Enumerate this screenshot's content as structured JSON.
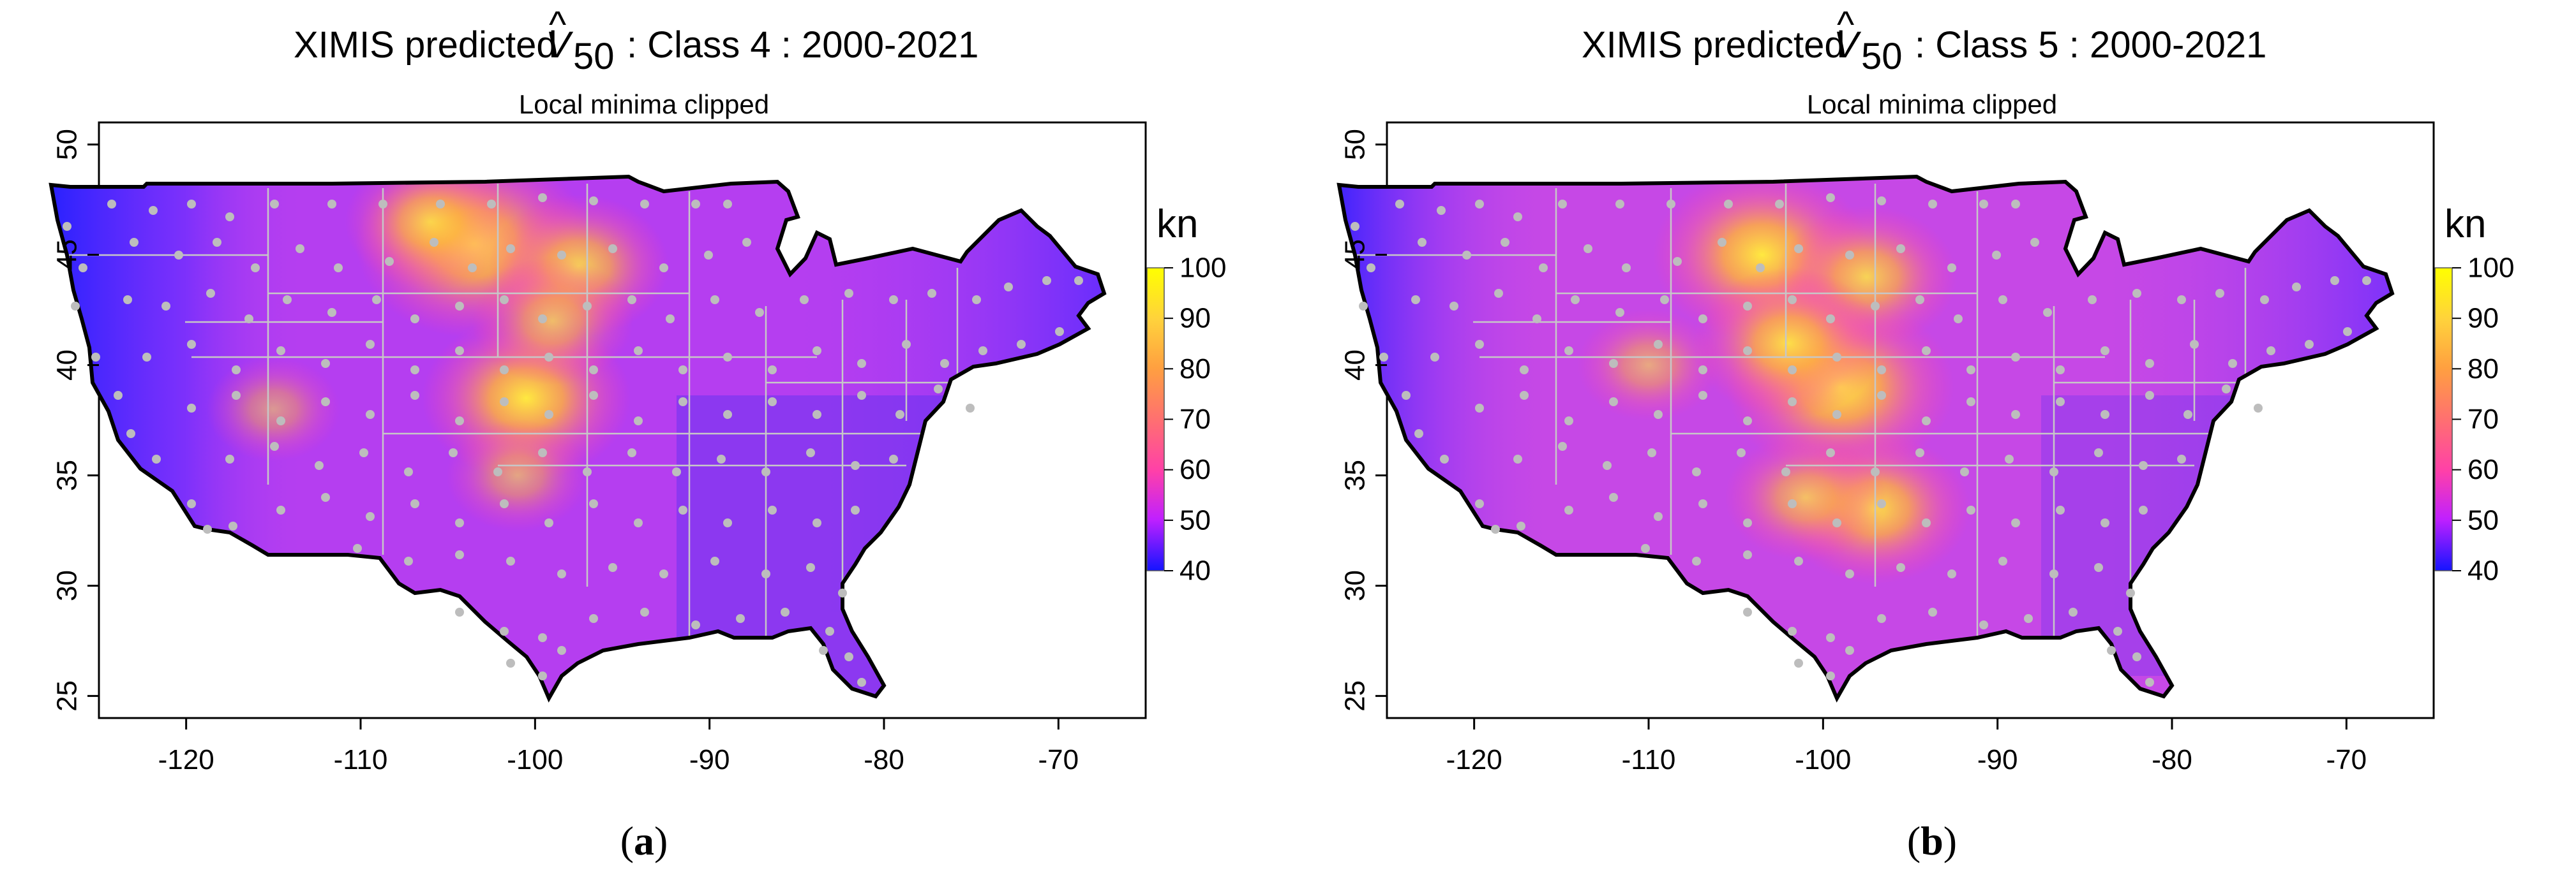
{
  "panels": [
    {
      "id": "a",
      "title_prefix": "XIMIS predicted",
      "title_symbol": "V",
      "title_hat": "^",
      "title_subscript": "50",
      "title_suffix": ": Class 4 : 2000-2021",
      "subtitle": "Local minima clipped",
      "caption_open": "(",
      "caption_letter": "a",
      "caption_close": ")",
      "hotspots": [
        {
          "lon": -103.5,
          "lat": 45.5,
          "value": 96
        },
        {
          "lon": -100.5,
          "lat": 38.5,
          "value": 90
        },
        {
          "lon": -97.5,
          "lat": 44.5,
          "value": 84
        },
        {
          "lon": -106,
          "lat": 46.5,
          "value": 82
        },
        {
          "lon": -99,
          "lat": 42,
          "value": 80
        },
        {
          "lon": -101,
          "lat": 35,
          "value": 76
        },
        {
          "lon": -115,
          "lat": 38,
          "value": 74
        }
      ]
    },
    {
      "id": "b",
      "title_prefix": "XIMIS predicted",
      "title_symbol": "V",
      "title_hat": "^",
      "title_subscript": "50",
      "title_suffix": ": Class 5 : 2000-2021",
      "subtitle": "Local minima clipped",
      "caption_open": "(",
      "caption_letter": "b",
      "caption_close": ")",
      "hotspots": [
        {
          "lon": -103.5,
          "lat": 45,
          "value": 92
        },
        {
          "lon": -99,
          "lat": 39,
          "value": 94
        },
        {
          "lon": -97.5,
          "lat": 44,
          "value": 84
        },
        {
          "lon": -102,
          "lat": 41,
          "value": 86
        },
        {
          "lon": -97,
          "lat": 33.5,
          "value": 86
        },
        {
          "lon": -101,
          "lat": 34,
          "value": 80
        },
        {
          "lon": -110,
          "lat": 40,
          "value": 76
        }
      ]
    }
  ],
  "axes": {
    "x_ticks": [
      "-120",
      "-110",
      "-100",
      "-90",
      "-80",
      "-70"
    ],
    "x_tick_values": [
      -120,
      -110,
      -100,
      -90,
      -80,
      -70
    ],
    "y_ticks": [
      "25",
      "30",
      "35",
      "40",
      "45",
      "50"
    ],
    "y_tick_values": [
      25,
      30,
      35,
      40,
      45,
      50
    ],
    "xlim": [
      -125,
      -65
    ],
    "ylim": [
      24,
      51
    ]
  },
  "colorbar": {
    "unit": "kn",
    "labels": [
      "100",
      "90",
      "80",
      "70",
      "60",
      "50",
      "40"
    ],
    "min": 40,
    "max": 100,
    "stops": [
      "#ffff00",
      "#ffd23c",
      "#ffa040",
      "#ff7070",
      "#ff40a8",
      "#c020ff",
      "#1414ff"
    ]
  },
  "colors": {
    "land_base": "#b53ef0",
    "coast_blue": "#3a28ff",
    "station": "#bdbdbd",
    "border": "#c7c7c7",
    "outline": "#000000"
  }
}
